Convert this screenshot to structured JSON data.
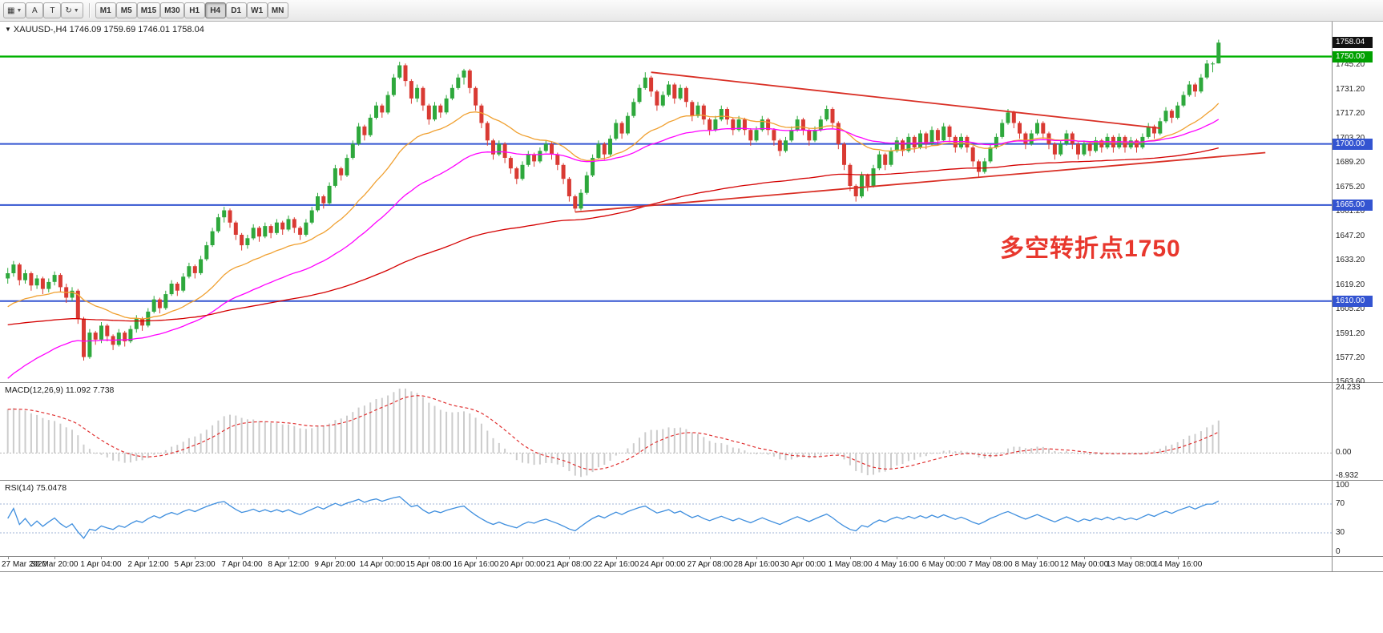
{
  "toolbar": {
    "left_icons": [
      {
        "name": "chart-grid-icon",
        "glyph": "▦",
        "caret": true
      },
      {
        "name": "font-tool-icon",
        "glyph": "A",
        "caret": false
      },
      {
        "name": "text-tool-icon",
        "glyph": "T",
        "caret": false
      },
      {
        "name": "period-cycle-icon",
        "glyph": "↻",
        "caret": true
      }
    ],
    "periods": [
      {
        "label": "M1",
        "active": false
      },
      {
        "label": "M5",
        "active": false
      },
      {
        "label": "M15",
        "active": false
      },
      {
        "label": "M30",
        "active": false
      },
      {
        "label": "H1",
        "active": false
      },
      {
        "label": "H4",
        "active": true
      },
      {
        "label": "D1",
        "active": false
      },
      {
        "label": "W1",
        "active": false
      },
      {
        "label": "MN",
        "active": false
      }
    ]
  },
  "chart_data": {
    "type": "candlestick",
    "symbol": "XAUUSD",
    "timeframe": "H4",
    "symbol_line": "XAUUSD-,H4 1746.09 1759.69 1746.01 1758.04",
    "ohlc_marker": "▼",
    "annotation": {
      "text": "多空转折点1750",
      "color": "#E8372D"
    },
    "price_range": [
      1563.6,
      1770.0
    ],
    "colors": {
      "bull": "#2EA83C",
      "bear": "#D93A33"
    },
    "axis_labels": [
      "1745.20",
      "1731.20",
      "1717.20",
      "1703.20",
      "1689.20",
      "1675.20",
      "1661.20",
      "1647.20",
      "1633.20",
      "1619.20",
      "1605.20",
      "1591.20",
      "1577.20",
      "1563.60"
    ],
    "price_tags": [
      {
        "value": "1758.04",
        "price": 1758.04,
        "bg": "#111111"
      },
      {
        "value": "1750.00",
        "price": 1750.0,
        "bg": "#00A000"
      },
      {
        "value": "1700.00",
        "price": 1700.0,
        "bg": "#3354D1"
      },
      {
        "value": "1665.00",
        "price": 1665.0,
        "bg": "#3354D1"
      },
      {
        "value": "1610.00",
        "price": 1610.0,
        "bg": "#3354D1"
      }
    ],
    "hlines": [
      {
        "price": 1750.0,
        "color": "#00B200",
        "width": 2.4
      },
      {
        "price": 1700.0,
        "color": "#3354D1",
        "width": 2
      },
      {
        "price": 1665.0,
        "color": "#3354D1",
        "width": 2
      },
      {
        "price": 1610.0,
        "color": "#3354D1",
        "width": 2
      }
    ],
    "trendlines": [
      {
        "i1": 110,
        "p1": 1741,
        "i2": 197,
        "p2": 1709,
        "color": "#D93026",
        "width": 1.8
      },
      {
        "i1": 97,
        "p1": 1661,
        "i2": 215,
        "p2": 1695,
        "color": "#D93026",
        "width": 1.8
      }
    ],
    "moving_averages": [
      {
        "period": 22,
        "seed": 1605,
        "color": "#F0A030"
      },
      {
        "period": 45,
        "seed": 1563,
        "color": "#FF00FF"
      },
      {
        "period": 140,
        "seed": 1596,
        "color": "#D40000"
      }
    ],
    "candles": [
      [
        1623,
        1629,
        1620,
        1626
      ],
      [
        1626,
        1633,
        1624,
        1631
      ],
      [
        1631,
        1632,
        1619,
        1622
      ],
      [
        1622,
        1628,
        1620,
        1626
      ],
      [
        1626,
        1627,
        1616,
        1619
      ],
      [
        1619,
        1625,
        1617,
        1623
      ],
      [
        1623,
        1624,
        1614,
        1617
      ],
      [
        1617,
        1623,
        1615,
        1621
      ],
      [
        1621,
        1627,
        1619,
        1625
      ],
      [
        1625,
        1626,
        1615,
        1618
      ],
      [
        1618,
        1620,
        1609,
        1612
      ],
      [
        1612,
        1618,
        1610,
        1616
      ],
      [
        1616,
        1617,
        1597,
        1600
      ],
      [
        1600,
        1601,
        1576,
        1578
      ],
      [
        1578,
        1594,
        1577,
        1592
      ],
      [
        1592,
        1593,
        1585,
        1588
      ],
      [
        1588,
        1598,
        1586,
        1596
      ],
      [
        1596,
        1597,
        1587,
        1590
      ],
      [
        1590,
        1591,
        1582,
        1585
      ],
      [
        1585,
        1594,
        1584,
        1592
      ],
      [
        1592,
        1593,
        1584,
        1587
      ],
      [
        1587,
        1596,
        1586,
        1594
      ],
      [
        1594,
        1602,
        1592,
        1600
      ],
      [
        1600,
        1601,
        1593,
        1596
      ],
      [
        1596,
        1606,
        1595,
        1604
      ],
      [
        1604,
        1613,
        1603,
        1611
      ],
      [
        1611,
        1612,
        1603,
        1606
      ],
      [
        1606,
        1616,
        1605,
        1614
      ],
      [
        1614,
        1622,
        1613,
        1620
      ],
      [
        1620,
        1621,
        1613,
        1616
      ],
      [
        1616,
        1626,
        1615,
        1624
      ],
      [
        1624,
        1632,
        1623,
        1630
      ],
      [
        1630,
        1631,
        1623,
        1626
      ],
      [
        1626,
        1636,
        1625,
        1634
      ],
      [
        1634,
        1644,
        1633,
        1642
      ],
      [
        1642,
        1652,
        1641,
        1650
      ],
      [
        1650,
        1660,
        1649,
        1658
      ],
      [
        1658,
        1664,
        1655,
        1662
      ],
      [
        1662,
        1663,
        1652,
        1655
      ],
      [
        1655,
        1656,
        1645,
        1648
      ],
      [
        1648,
        1649,
        1639,
        1642
      ],
      [
        1642,
        1648,
        1640,
        1646
      ],
      [
        1646,
        1654,
        1645,
        1652
      ],
      [
        1652,
        1653,
        1644,
        1647
      ],
      [
        1647,
        1655,
        1646,
        1653
      ],
      [
        1653,
        1654,
        1646,
        1649
      ],
      [
        1649,
        1657,
        1648,
        1655
      ],
      [
        1655,
        1656,
        1648,
        1651
      ],
      [
        1651,
        1659,
        1650,
        1657
      ],
      [
        1657,
        1658,
        1649,
        1652
      ],
      [
        1652,
        1653,
        1645,
        1648
      ],
      [
        1648,
        1657,
        1647,
        1655
      ],
      [
        1655,
        1664,
        1654,
        1662
      ],
      [
        1662,
        1672,
        1661,
        1670
      ],
      [
        1670,
        1671,
        1663,
        1666
      ],
      [
        1666,
        1678,
        1665,
        1676
      ],
      [
        1676,
        1688,
        1675,
        1686
      ],
      [
        1686,
        1687,
        1679,
        1682
      ],
      [
        1682,
        1694,
        1681,
        1692
      ],
      [
        1692,
        1702,
        1691,
        1700
      ],
      [
        1700,
        1712,
        1699,
        1710
      ],
      [
        1710,
        1711,
        1702,
        1705
      ],
      [
        1705,
        1717,
        1704,
        1715
      ],
      [
        1715,
        1724,
        1714,
        1722
      ],
      [
        1722,
        1723,
        1715,
        1718
      ],
      [
        1718,
        1730,
        1717,
        1728
      ],
      [
        1728,
        1740,
        1727,
        1738
      ],
      [
        1738,
        1747,
        1737,
        1745
      ],
      [
        1745,
        1746,
        1733,
        1736
      ],
      [
        1736,
        1737,
        1723,
        1726
      ],
      [
        1726,
        1734,
        1724,
        1732
      ],
      [
        1732,
        1733,
        1719,
        1722
      ],
      [
        1722,
        1723,
        1711,
        1714
      ],
      [
        1714,
        1724,
        1713,
        1722
      ],
      [
        1722,
        1723,
        1715,
        1718
      ],
      [
        1718,
        1728,
        1717,
        1726
      ],
      [
        1726,
        1734,
        1725,
        1732
      ],
      [
        1732,
        1740,
        1731,
        1738
      ],
      [
        1738,
        1743,
        1734,
        1742
      ],
      [
        1742,
        1743,
        1729,
        1732
      ],
      [
        1732,
        1733,
        1719,
        1722
      ],
      [
        1722,
        1723,
        1709,
        1712
      ],
      [
        1712,
        1713,
        1699,
        1702
      ],
      [
        1702,
        1703,
        1691,
        1694
      ],
      [
        1694,
        1702,
        1693,
        1700
      ],
      [
        1700,
        1701,
        1689,
        1692
      ],
      [
        1692,
        1693,
        1683,
        1686
      ],
      [
        1686,
        1687,
        1677,
        1680
      ],
      [
        1680,
        1690,
        1679,
        1688
      ],
      [
        1688,
        1696,
        1687,
        1694
      ],
      [
        1694,
        1695,
        1687,
        1690
      ],
      [
        1690,
        1698,
        1689,
        1696
      ],
      [
        1696,
        1702,
        1695,
        1700
      ],
      [
        1700,
        1701,
        1691,
        1694
      ],
      [
        1694,
        1695,
        1685,
        1688
      ],
      [
        1688,
        1689,
        1677,
        1680
      ],
      [
        1680,
        1681,
        1667,
        1670
      ],
      [
        1670,
        1671,
        1661,
        1663
      ],
      [
        1663,
        1674,
        1662,
        1672
      ],
      [
        1672,
        1684,
        1671,
        1682
      ],
      [
        1682,
        1694,
        1681,
        1692
      ],
      [
        1692,
        1702,
        1691,
        1700
      ],
      [
        1700,
        1701,
        1691,
        1694
      ],
      [
        1694,
        1705,
        1693,
        1703
      ],
      [
        1703,
        1714,
        1702,
        1712
      ],
      [
        1712,
        1713,
        1703,
        1706
      ],
      [
        1706,
        1718,
        1705,
        1716
      ],
      [
        1716,
        1726,
        1715,
        1724
      ],
      [
        1724,
        1734,
        1723,
        1732
      ],
      [
        1732,
        1741,
        1731,
        1738
      ],
      [
        1738,
        1739,
        1727,
        1730
      ],
      [
        1730,
        1731,
        1719,
        1722
      ],
      [
        1722,
        1730,
        1721,
        1728
      ],
      [
        1728,
        1736,
        1727,
        1734
      ],
      [
        1734,
        1735,
        1723,
        1726
      ],
      [
        1726,
        1734,
        1725,
        1732
      ],
      [
        1732,
        1733,
        1721,
        1724
      ],
      [
        1724,
        1725,
        1713,
        1716
      ],
      [
        1716,
        1724,
        1715,
        1722
      ],
      [
        1722,
        1723,
        1711,
        1714
      ],
      [
        1714,
        1715,
        1705,
        1708
      ],
      [
        1708,
        1716,
        1707,
        1714
      ],
      [
        1714,
        1722,
        1713,
        1720
      ],
      [
        1720,
        1721,
        1711,
        1714
      ],
      [
        1714,
        1715,
        1705,
        1708
      ],
      [
        1708,
        1716,
        1707,
        1714
      ],
      [
        1714,
        1715,
        1705,
        1708
      ],
      [
        1708,
        1709,
        1699,
        1702
      ],
      [
        1702,
        1710,
        1701,
        1708
      ],
      [
        1708,
        1716,
        1707,
        1714
      ],
      [
        1714,
        1715,
        1705,
        1708
      ],
      [
        1708,
        1709,
        1699,
        1702
      ],
      [
        1702,
        1703,
        1693,
        1696
      ],
      [
        1696,
        1704,
        1695,
        1702
      ],
      [
        1702,
        1710,
        1701,
        1708
      ],
      [
        1708,
        1716,
        1707,
        1714
      ],
      [
        1714,
        1715,
        1705,
        1708
      ],
      [
        1708,
        1709,
        1699,
        1702
      ],
      [
        1702,
        1710,
        1701,
        1708
      ],
      [
        1708,
        1716,
        1707,
        1714
      ],
      [
        1714,
        1722,
        1713,
        1720
      ],
      [
        1720,
        1721,
        1709,
        1712
      ],
      [
        1712,
        1713,
        1697,
        1700
      ],
      [
        1700,
        1701,
        1685,
        1688
      ],
      [
        1688,
        1689,
        1673,
        1676
      ],
      [
        1676,
        1677,
        1667,
        1670
      ],
      [
        1670,
        1684,
        1669,
        1682
      ],
      [
        1682,
        1683,
        1673,
        1676
      ],
      [
        1676,
        1688,
        1675,
        1686
      ],
      [
        1686,
        1696,
        1685,
        1694
      ],
      [
        1694,
        1695,
        1685,
        1688
      ],
      [
        1688,
        1698,
        1687,
        1696
      ],
      [
        1696,
        1704,
        1695,
        1702
      ],
      [
        1702,
        1703,
        1693,
        1696
      ],
      [
        1696,
        1706,
        1695,
        1704
      ],
      [
        1704,
        1705,
        1695,
        1698
      ],
      [
        1698,
        1708,
        1697,
        1706
      ],
      [
        1706,
        1707,
        1697,
        1700
      ],
      [
        1700,
        1710,
        1699,
        1708
      ],
      [
        1708,
        1709,
        1699,
        1702
      ],
      [
        1702,
        1712,
        1701,
        1710
      ],
      [
        1710,
        1711,
        1701,
        1704
      ],
      [
        1704,
        1705,
        1695,
        1698
      ],
      [
        1698,
        1706,
        1697,
        1704
      ],
      [
        1704,
        1705,
        1695,
        1698
      ],
      [
        1698,
        1699,
        1687,
        1690
      ],
      [
        1690,
        1691,
        1681,
        1684
      ],
      [
        1684,
        1692,
        1683,
        1690
      ],
      [
        1690,
        1700,
        1689,
        1698
      ],
      [
        1698,
        1706,
        1697,
        1704
      ],
      [
        1704,
        1714,
        1703,
        1712
      ],
      [
        1712,
        1720,
        1711,
        1718
      ],
      [
        1718,
        1719,
        1709,
        1712
      ],
      [
        1712,
        1713,
        1703,
        1706
      ],
      [
        1706,
        1707,
        1697,
        1700
      ],
      [
        1700,
        1708,
        1699,
        1706
      ],
      [
        1706,
        1714,
        1705,
        1712
      ],
      [
        1712,
        1713,
        1703,
        1706
      ],
      [
        1706,
        1707,
        1697,
        1700
      ],
      [
        1700,
        1701,
        1691,
        1694
      ],
      [
        1694,
        1702,
        1693,
        1700
      ],
      [
        1700,
        1708,
        1699,
        1706
      ],
      [
        1706,
        1707,
        1697,
        1700
      ],
      [
        1700,
        1701,
        1691,
        1694
      ],
      [
        1694,
        1702,
        1693,
        1700
      ],
      [
        1700,
        1701,
        1693,
        1696
      ],
      [
        1696,
        1704,
        1695,
        1702
      ],
      [
        1702,
        1703,
        1695,
        1698
      ],
      [
        1698,
        1706,
        1697,
        1704
      ],
      [
        1704,
        1705,
        1695,
        1698
      ],
      [
        1698,
        1706,
        1697,
        1704
      ],
      [
        1704,
        1705,
        1695,
        1698
      ],
      [
        1698,
        1704,
        1697,
        1702
      ],
      [
        1702,
        1703,
        1695,
        1698
      ],
      [
        1698,
        1706,
        1697,
        1704
      ],
      [
        1704,
        1712,
        1703,
        1710
      ],
      [
        1710,
        1711,
        1703,
        1706
      ],
      [
        1706,
        1715,
        1705,
        1713
      ],
      [
        1713,
        1721,
        1712,
        1719
      ],
      [
        1719,
        1720,
        1712,
        1715
      ],
      [
        1715,
        1724,
        1714,
        1722
      ],
      [
        1722,
        1730,
        1721,
        1728
      ],
      [
        1728,
        1736,
        1727,
        1734
      ],
      [
        1734,
        1735,
        1727,
        1730
      ],
      [
        1730,
        1740,
        1729,
        1738
      ],
      [
        1738,
        1748,
        1737,
        1746
      ],
      [
        1746,
        1747,
        1741,
        1746
      ],
      [
        1746.1,
        1759.7,
        1746,
        1758
      ]
    ]
  },
  "macd": {
    "label": "MACD(12,26,9) 11.092 7.738",
    "fast": 12,
    "slow": 26,
    "signal": 9,
    "seed_fast": 1608,
    "seed_slow": 1592,
    "range": [
      -10,
      26
    ],
    "axis_labels": [
      {
        "text": "24.233",
        "value": 24.233
      },
      {
        "text": "0.00",
        "value": 0
      },
      {
        "text": "-8.932",
        "value": -8.932
      }
    ],
    "bar_color": "#cccccc",
    "signal_color": "#E03030"
  },
  "rsi": {
    "label": "RSI(14) 75.0478",
    "period": 14,
    "levels": [
      70,
      30
    ],
    "axis_labels": [
      {
        "text": "100",
        "value": 100
      },
      {
        "text": "70",
        "value": 70
      },
      {
        "text": "30",
        "value": 30
      },
      {
        "text": "0",
        "value": 0
      }
    ],
    "line_color": "#3E8EDE",
    "level_color": "#9FB3D6"
  },
  "time_axis": {
    "tick_step": 8,
    "labels": [
      "27 Mar 2020",
      "30 Mar 20:00",
      "1 Apr 04:00",
      "2 Apr 12:00",
      "5 Apr 23:00",
      "7 Apr 04:00",
      "8 Apr 12:00",
      "9 Apr 20:00",
      "14 Apr 00:00",
      "15 Apr 08:00",
      "16 Apr 16:00",
      "20 Apr 00:00",
      "21 Apr 08:00",
      "22 Apr 16:00",
      "24 Apr 00:00",
      "27 Apr 08:00",
      "28 Apr 16:00",
      "30 Apr 00:00",
      "1 May 08:00",
      "4 May 16:00",
      "6 May 00:00",
      "7 May 08:00",
      "8 May 16:00",
      "12 May 00:00",
      "13 May 08:00",
      "14 May 16:00"
    ]
  }
}
